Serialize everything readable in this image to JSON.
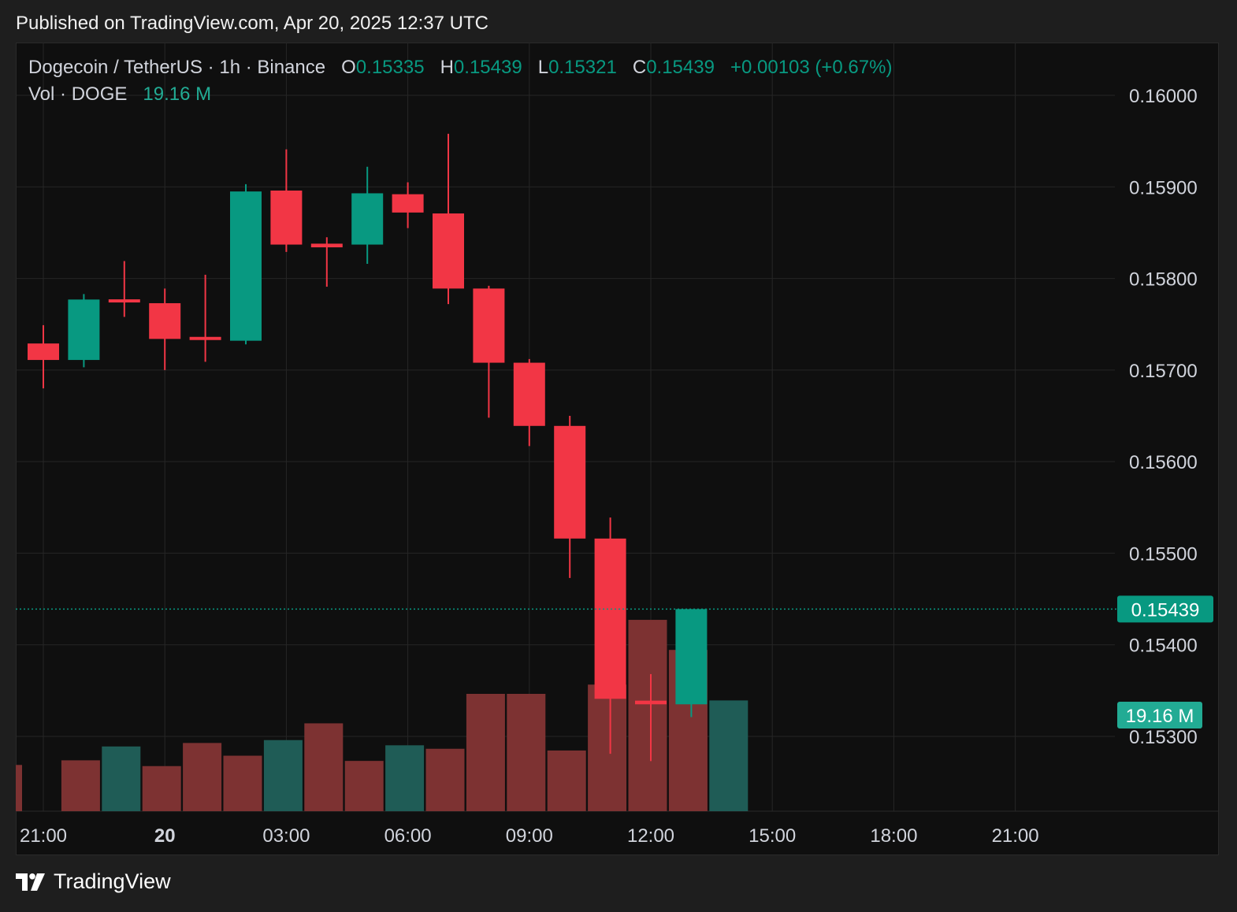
{
  "header": {
    "published": "Published on TradingView.com, Apr 20, 2025 12:37 UTC"
  },
  "legend": {
    "symbol": "Dogecoin / TetherUS · 1h · Binance",
    "o_label": "O",
    "o_value": "0.15335",
    "h_label": "H",
    "h_value": "0.15439",
    "l_label": "L",
    "l_value": "0.15321",
    "c_label": "C",
    "c_value": "0.15439",
    "change": "+0.00103 (+0.67%)",
    "vol_label": "Vol · DOGE",
    "vol_value": "19.16 M"
  },
  "footer": {
    "brand": "TradingView",
    "logo_icon": "tradingview-logo-icon"
  },
  "colors": {
    "up": "#089981",
    "down": "#f23645",
    "vol_up": "#1f5c56",
    "vol_down": "#7d3232",
    "grid": "#262626",
    "text": "#d1d4dc",
    "bg": "#0f0f0f"
  },
  "chart_data": {
    "type": "candlestick",
    "title": "Dogecoin / TetherUS · 1h · Binance",
    "y_ticks": [
      "0.16000",
      "0.15900",
      "0.15800",
      "0.15700",
      "0.15600",
      "0.15500",
      "0.15400",
      "0.15300"
    ],
    "ylim": [
      0.1522,
      0.1608
    ],
    "x_ticks": [
      {
        "label": "21:00",
        "index": 0,
        "bold": false
      },
      {
        "label": "20",
        "index": 3,
        "bold": true
      },
      {
        "label": "03:00",
        "index": 6,
        "bold": false
      },
      {
        "label": "06:00",
        "index": 9,
        "bold": false
      },
      {
        "label": "09:00",
        "index": 12,
        "bold": false
      },
      {
        "label": "12:00",
        "index": 15,
        "bold": false
      },
      {
        "label": "15:00",
        "index": 18,
        "bold": false
      },
      {
        "label": "18:00",
        "index": 21,
        "bold": false
      },
      {
        "label": "21:00",
        "index": 24,
        "bold": false
      }
    ],
    "candles": [
      {
        "time": "Apr 19 20:00",
        "o": 0.15729,
        "h": 0.15749,
        "l": 0.1568,
        "c": 0.15711,
        "vol": 8.8
      },
      {
        "time": "Apr 19 21:00",
        "o": 0.15711,
        "h": 0.15783,
        "l": 0.15703,
        "c": 0.15777,
        "vol": 11.2
      },
      {
        "time": "Apr 19 22:00",
        "o": 0.15777,
        "h": 0.15819,
        "l": 0.15758,
        "c": 0.15774,
        "vol": 7.8
      },
      {
        "time": "Apr 19 23:00",
        "o": 0.15773,
        "h": 0.15789,
        "l": 0.157,
        "c": 0.15734,
        "vol": 11.8
      },
      {
        "time": "Apr 20 00:00",
        "o": 0.15735,
        "h": 0.15804,
        "l": 0.15709,
        "c": 0.15734,
        "vol": 9.6
      },
      {
        "time": "Apr 20 01:00",
        "o": 0.15732,
        "h": 0.15903,
        "l": 0.15728,
        "c": 0.15895,
        "vol": 12.3
      },
      {
        "time": "Apr 20 02:00",
        "o": 0.15896,
        "h": 0.15941,
        "l": 0.15829,
        "c": 0.15837,
        "vol": 15.2
      },
      {
        "time": "Apr 20 03:00",
        "o": 0.15838,
        "h": 0.15845,
        "l": 0.15791,
        "c": 0.15834,
        "vol": 8.7
      },
      {
        "time": "Apr 20 04:00",
        "o": 0.15837,
        "h": 0.15922,
        "l": 0.15816,
        "c": 0.15893,
        "vol": 11.4
      },
      {
        "time": "Apr 20 05:00",
        "o": 0.15892,
        "h": 0.15905,
        "l": 0.15855,
        "c": 0.15872,
        "vol": 10.8
      },
      {
        "time": "Apr 20 06:00",
        "o": 0.15871,
        "h": 0.15958,
        "l": 0.15772,
        "c": 0.15789,
        "vol": 20.3
      },
      {
        "time": "Apr 20 07:00",
        "o": 0.15789,
        "h": 0.15792,
        "l": 0.15648,
        "c": 0.15708,
        "vol": 20.3
      },
      {
        "time": "Apr 20 08:00",
        "o": 0.15708,
        "h": 0.15712,
        "l": 0.15617,
        "c": 0.15639,
        "vol": 10.5
      },
      {
        "time": "Apr 20 09:00",
        "o": 0.15639,
        "h": 0.1565,
        "l": 0.15473,
        "c": 0.15516,
        "vol": 21.9
      },
      {
        "time": "Apr 20 10:00",
        "o": 0.15516,
        "h": 0.15539,
        "l": 0.15281,
        "c": 0.15341,
        "vol": 33.1
      },
      {
        "time": "Apr 20 11:00",
        "o": 0.15339,
        "h": 0.15368,
        "l": 0.15273,
        "c": 0.15335,
        "vol": 27.9
      },
      {
        "time": "Apr 20 12:00",
        "o": 0.15335,
        "h": 0.15439,
        "l": 0.15321,
        "c": 0.15439,
        "vol": 19.16
      }
    ],
    "last_price": "0.15439",
    "last_volume": "19.16 M",
    "grid": true
  }
}
